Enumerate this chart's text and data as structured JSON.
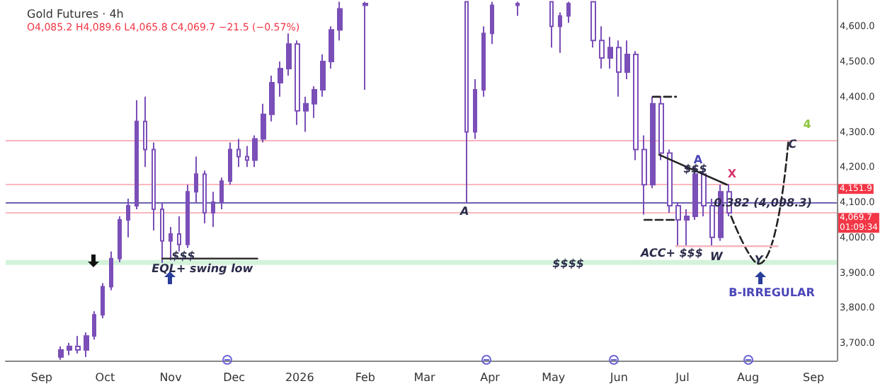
{
  "chart_data": {
    "type": "candlestick",
    "title": "Gold Futures · 4h",
    "subtitle": "O4,085.2 H4,089.6 L4,065.8 C4,069.7 −21.5 (−0.57%)",
    "x": [
      "2025-09-10",
      "2025-09-14",
      "2025-09-18",
      "2025-09-22",
      "2025-09-26",
      "2025-09-30",
      "2025-10-04",
      "2025-10-08",
      "2025-10-12",
      "2025-10-16",
      "2025-10-20",
      "2025-10-24",
      "2025-10-28",
      "2025-11-01",
      "2025-11-05",
      "2025-11-09",
      "2025-11-13",
      "2025-11-17",
      "2025-11-21",
      "2025-11-25",
      "2025-11-29",
      "2025-12-03",
      "2025-12-07",
      "2025-12-11",
      "2025-12-15",
      "2025-12-19",
      "2025-12-23",
      "2025-12-27",
      "2025-12-31",
      "2026-01-04",
      "2026-01-08",
      "2026-01-12",
      "2026-01-16",
      "2026-01-20",
      "2026-02-01",
      "2026-03-21",
      "2026-03-25",
      "2026-03-29",
      "2026-04-02",
      "2026-04-14",
      "2026-04-30",
      "2026-05-04",
      "2026-05-08",
      "2026-05-20",
      "2026-05-24",
      "2026-05-28",
      "2026-06-01",
      "2026-06-05",
      "2026-06-09",
      "2026-06-13",
      "2026-06-17",
      "2026-06-21",
      "2026-06-25",
      "2026-06-29",
      "2026-07-03",
      "2026-07-07",
      "2026-07-11",
      "2026-07-15",
      "2026-07-19",
      "2026-07-23"
    ],
    "ohlc": [
      [
        3660,
        3690,
        3652,
        3680
      ],
      [
        3680,
        3700,
        3665,
        3690
      ],
      [
        3690,
        3720,
        3670,
        3680
      ],
      [
        3680,
        3730,
        3660,
        3720
      ],
      [
        3720,
        3790,
        3710,
        3780
      ],
      [
        3780,
        3870,
        3770,
        3860
      ],
      [
        3860,
        3960,
        3850,
        3940
      ],
      [
        3940,
        4060,
        3930,
        4050
      ],
      [
        4050,
        4110,
        4000,
        4090
      ],
      [
        4090,
        4390,
        4080,
        4330
      ],
      [
        4330,
        4400,
        4200,
        4250
      ],
      [
        4250,
        4270,
        4020,
        4080
      ],
      [
        4080,
        4100,
        3928,
        3990
      ],
      [
        3990,
        4030,
        3935,
        4010
      ],
      [
        4010,
        4060,
        3960,
        3980
      ],
      [
        3980,
        4150,
        3970,
        4130
      ],
      [
        4130,
        4230,
        4100,
        4180
      ],
      [
        4180,
        4190,
        4040,
        4070
      ],
      [
        4070,
        4130,
        4030,
        4100
      ],
      [
        4100,
        4170,
        4080,
        4160
      ],
      [
        4160,
        4270,
        4150,
        4250
      ],
      [
        4250,
        4280,
        4200,
        4230
      ],
      [
        4230,
        4260,
        4200,
        4220
      ],
      [
        4220,
        4290,
        4200,
        4280
      ],
      [
        4280,
        4380,
        4270,
        4350
      ],
      [
        4350,
        4460,
        4330,
        4440
      ],
      [
        4440,
        4500,
        4400,
        4480
      ],
      [
        4480,
        4580,
        4460,
        4550
      ],
      [
        4550,
        4560,
        4320,
        4360
      ],
      [
        4360,
        4400,
        4300,
        4380
      ],
      [
        4380,
        4430,
        4340,
        4420
      ],
      [
        4420,
        4520,
        4400,
        4500
      ],
      [
        4500,
        4600,
        4480,
        4590
      ],
      [
        4590,
        4670,
        4560,
        4650
      ],
      [
        4660,
        4670,
        4420,
        4665
      ],
      [
        4670,
        4670,
        4098,
        4300
      ],
      [
        4300,
        4450,
        4280,
        4420
      ],
      [
        4420,
        4600,
        4400,
        4580
      ],
      [
        4580,
        4670,
        4550,
        4660
      ],
      [
        4660,
        4670,
        4630,
        4665
      ],
      [
        4670,
        4670,
        4540,
        4600
      ],
      [
        4600,
        4640,
        4525,
        4630
      ],
      [
        4630,
        4670,
        4610,
        4665
      ],
      [
        4670,
        4670,
        4540,
        4560
      ],
      [
        4560,
        4600,
        4480,
        4510
      ],
      [
        4510,
        4570,
        4480,
        4540
      ],
      [
        4540,
        4560,
        4400,
        4470
      ],
      [
        4470,
        4560,
        4450,
        4520
      ],
      [
        4520,
        4530,
        4220,
        4250
      ],
      [
        4250,
        4290,
        4065,
        4150
      ],
      [
        4150,
        4400,
        4140,
        4380
      ],
      [
        4380,
        4400,
        4220,
        4240
      ],
      [
        4240,
        4250,
        4070,
        4090
      ],
      [
        4090,
        4100,
        3975,
        4050
      ],
      [
        4050,
        4080,
        3975,
        4060
      ],
      [
        4060,
        4200,
        4050,
        4180
      ],
      [
        4180,
        4190,
        4060,
        4090
      ],
      [
        4090,
        4110,
        3975,
        4000
      ],
      [
        4000,
        4150,
        3990,
        4130
      ],
      [
        4130,
        4151.9,
        4060,
        4069.7
      ]
    ],
    "color": "#7b4fb8",
    "series": [
      {
        "type": "line",
        "x": [
          "2026-07-24",
          "2026-08-06",
          "2026-08-20"
        ],
        "values": [
          4060,
          3925,
          4270
        ],
        "color": "#222222",
        "line_style": "dashed"
      },
      {
        "type": "line",
        "x": [
          "2026-06-20",
          "2026-07-22"
        ],
        "values": [
          4235,
          4150
        ],
        "color": "#222222",
        "line_style": "solid"
      },
      {
        "type": "line",
        "x": [
          "2026-06-17",
          "2026-06-28"
        ],
        "values": [
          4400,
          4400
        ],
        "color": "#222222",
        "line_style": "dashed"
      },
      {
        "type": "line",
        "x": [
          "2026-06-13",
          "2026-06-28"
        ],
        "values": [
          4050,
          4050
        ],
        "color": "#222222",
        "line_style": "dashed"
      },
      {
        "type": "line",
        "x": [
          "2025-10-28",
          "2025-12-12"
        ],
        "values": [
          3940,
          3940
        ],
        "color": "#333333",
        "line_style": "solid"
      },
      {
        "type": "line",
        "x": [
          "2026-06-28",
          "2026-08-15"
        ],
        "values": [
          3975,
          3975
        ],
        "color": "#f4b6bd",
        "line_style": "solid"
      }
    ],
    "ref_lines": [
      {
        "axis": "y",
        "value": 4278,
        "label": null,
        "color": "#f7b3bc"
      },
      {
        "axis": "y",
        "value": 4151.9,
        "label": "4,151.9",
        "color": "#f23645"
      },
      {
        "axis": "y",
        "value": 4098.3,
        "label": null,
        "color": "#6a63b0"
      },
      {
        "axis": "y",
        "value": 4069.7,
        "label": "4,069.7\n01:09:34",
        "color": "#f23645"
      }
    ],
    "bands": [
      {
        "axis": "y",
        "from": 3922,
        "to": 3936,
        "label": null,
        "color": "#d3f2da"
      }
    ],
    "annotations": [
      {
        "text": "A",
        "x": "2026-03-20",
        "y": 4075
      },
      {
        "text": "$$$",
        "x": "2025-11-07",
        "y": 3947
      },
      {
        "text": "EQL+ swing low",
        "x": "2025-11-16",
        "y": 3912
      },
      {
        "text": "$$$$",
        "x": "2026-05-08",
        "y": 3925
      },
      "A",
      {
        "text": "$$$",
        "x": "2026-07-07",
        "y": 4195
      },
      "X",
      {
        "text": "W",
        "x": "2026-07-17",
        "y": 3945
      },
      {
        "text": "ACC+ $$$",
        "x": "2026-06-26",
        "y": 3955
      },
      {
        "text": "Y",
        "x": "2026-08-06",
        "y": 3935
      },
      {
        "text": "C",
        "x": "2026-08-22",
        "y": 4265
      },
      "4",
      "B-IRREGULAR",
      {
        "text": "0.382 (4,098.3)",
        "x": "2026-08-08",
        "y": 4098.3
      }
    ],
    "xlim": [
      "2025-08-15",
      "2026-09-12"
    ],
    "xticks": [
      {
        "value": "2025-09-01",
        "label": "Sep"
      },
      {
        "value": "2025-10-01",
        "label": "Oct"
      },
      {
        "value": "2025-11-01",
        "label": "Nov"
      },
      {
        "value": "2025-12-01",
        "label": "Dec"
      },
      {
        "value": "2026-01-01",
        "label": "2026"
      },
      {
        "value": "2026-02-01",
        "label": "Feb"
      },
      {
        "value": "2026-03-01",
        "label": "Mar"
      },
      {
        "value": "2026-04-01",
        "label": "Apr"
      },
      {
        "value": "2026-05-01",
        "label": "May"
      },
      {
        "value": "2026-06-01",
        "label": "Jun"
      },
      {
        "value": "2026-07-01",
        "label": "Jul"
      },
      {
        "value": "2026-08-01",
        "label": "Aug"
      },
      {
        "value": "2026-09-01",
        "label": "Sep"
      }
    ],
    "ylim": [
      3650,
      4675
    ],
    "yticks": [
      {
        "value": 3700,
        "label": "3,700.0"
      },
      {
        "value": 3800,
        "label": "3,800.0"
      },
      {
        "value": 3900,
        "label": "3,900.0"
      },
      {
        "value": 4000,
        "label": "4,000.0"
      },
      {
        "value": 4100,
        "label": "4,100.0"
      },
      {
        "value": 4200,
        "label": "4,200.0"
      },
      {
        "value": 4300,
        "label": "4,300.0"
      },
      {
        "value": 4400,
        "label": "4,400.0"
      },
      {
        "value": 4500,
        "label": "4,500.0"
      },
      {
        "value": 4600,
        "label": "4,600.0"
      }
    ],
    "grid": false
  }
}
